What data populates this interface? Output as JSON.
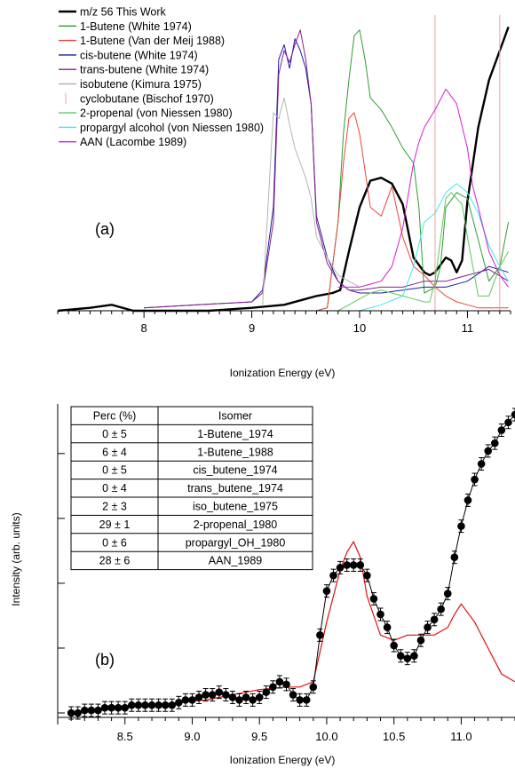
{
  "chart_data": [
    {
      "type": "line",
      "panel_label": "(a)",
      "xlabel": "Ionization Energy (eV)",
      "ylabel": "",
      "xlim": [
        7.2,
        11.4
      ],
      "xticks": [
        "8",
        "9",
        "10",
        "11"
      ],
      "grid": false,
      "legend_position": "top-left",
      "series": [
        {
          "name": "m/z 56 This Work",
          "color": "#000000",
          "x": [
            7.2,
            7.5,
            7.7,
            7.9,
            8.2,
            8.6,
            9.0,
            9.3,
            9.5,
            9.6,
            9.75,
            9.82,
            9.9,
            10.0,
            10.1,
            10.2,
            10.3,
            10.4,
            10.5,
            10.6,
            10.65,
            10.7,
            10.8,
            10.85,
            10.9,
            10.95,
            11.0,
            11.1,
            11.2,
            11.3,
            11.38
          ],
          "y": [
            0.0,
            0.01,
            0.02,
            0.0,
            0.0,
            0.0,
            0.01,
            0.02,
            0.04,
            0.05,
            0.06,
            0.07,
            0.2,
            0.35,
            0.44,
            0.45,
            0.43,
            0.36,
            0.18,
            0.13,
            0.12,
            0.13,
            0.18,
            0.17,
            0.13,
            0.17,
            0.37,
            0.62,
            0.78,
            0.88,
            0.96
          ]
        },
        {
          "name": "1-Butene (White 1974)",
          "color": "#2e9e2e",
          "x": [
            9.6,
            9.7,
            9.8,
            9.85,
            9.9,
            9.95,
            10.0,
            10.05,
            10.1,
            10.2,
            10.3,
            10.4,
            10.5,
            10.55,
            10.6,
            10.7,
            10.75,
            10.8,
            10.9,
            11.0,
            11.2,
            11.3,
            11.38
          ],
          "y": [
            0.0,
            0.01,
            0.3,
            0.6,
            0.78,
            0.93,
            0.95,
            0.85,
            0.72,
            0.68,
            0.62,
            0.55,
            0.5,
            0.35,
            0.06,
            0.08,
            0.15,
            0.35,
            0.4,
            0.38,
            0.1,
            0.15,
            0.3
          ]
        },
        {
          "name": "1-Butene (Van der Meij 1988)",
          "color": "#e8463a",
          "x": [
            9.6,
            9.7,
            9.8,
            9.85,
            9.9,
            9.95,
            10.0,
            10.1,
            10.2,
            10.3,
            10.4,
            10.5,
            10.6,
            10.7,
            10.8,
            10.9,
            11.0,
            11.1,
            11.2,
            11.3,
            11.38
          ],
          "y": [
            0.0,
            0.01,
            0.3,
            0.5,
            0.65,
            0.67,
            0.6,
            0.35,
            0.32,
            0.42,
            0.25,
            0.15,
            0.12,
            0.08,
            0.05,
            0.03,
            0.02,
            0.01,
            0.01,
            0.01,
            0.01
          ]
        },
        {
          "name": "cis-butene (White 1974)",
          "color": "#1c1ca8",
          "x": [
            8.0,
            8.5,
            9.0,
            9.1,
            9.2,
            9.25,
            9.3,
            9.35,
            9.4,
            9.45,
            9.5,
            9.55,
            9.6,
            9.7,
            9.8,
            9.9,
            10.0,
            10.2,
            10.4,
            10.6,
            10.8,
            11.0,
            11.2,
            11.38
          ],
          "y": [
            0.01,
            0.02,
            0.03,
            0.07,
            0.35,
            0.85,
            0.9,
            0.82,
            0.92,
            0.88,
            0.82,
            0.7,
            0.32,
            0.18,
            0.1,
            0.07,
            0.06,
            0.06,
            0.07,
            0.08,
            0.08,
            0.1,
            0.15,
            0.13
          ]
        },
        {
          "name": "trans-butene (White 1974)",
          "color": "#8a1f8a",
          "x": [
            8.0,
            8.5,
            9.0,
            9.1,
            9.2,
            9.25,
            9.3,
            9.35,
            9.4,
            9.45,
            9.5,
            9.55,
            9.6,
            9.7,
            9.8,
            9.9,
            10.0,
            10.2,
            10.4,
            10.6,
            10.8,
            11.0,
            11.2,
            11.38
          ],
          "y": [
            0.01,
            0.02,
            0.03,
            0.06,
            0.3,
            0.8,
            0.88,
            0.84,
            0.9,
            0.95,
            0.85,
            0.7,
            0.3,
            0.16,
            0.1,
            0.07,
            0.07,
            0.08,
            0.08,
            0.1,
            0.1,
            0.12,
            0.14,
            0.1
          ]
        },
        {
          "name": "isobutene (Kimura 1975)",
          "color": "#b4b4b4",
          "x": [
            9.1,
            9.15,
            9.2,
            9.25,
            9.3,
            9.35,
            9.4,
            9.45,
            9.5,
            9.55,
            9.6,
            9.7,
            9.8,
            9.9,
            10.0
          ],
          "y": [
            0.02,
            0.35,
            0.67,
            0.65,
            0.72,
            0.63,
            0.55,
            0.5,
            0.45,
            0.38,
            0.25,
            0.18,
            0.12,
            0.1,
            0.08
          ]
        },
        {
          "name": "cyclobutane (Bischof 1970)",
          "color": "#f2a0a0",
          "x": [
            10.7,
            11.3
          ],
          "y": [
            1.0,
            1.0
          ]
        },
        {
          "name": "2-propenal (von Niessen 1980)",
          "color": "#5cc85c",
          "x": [
            9.8,
            9.9,
            10.0,
            10.1,
            10.2,
            10.3,
            10.4,
            10.5,
            10.6,
            10.65,
            10.7,
            10.8,
            10.85,
            10.9,
            10.95,
            11.0,
            11.1,
            11.2,
            11.3,
            11.38
          ],
          "y": [
            0.0,
            0.02,
            0.04,
            0.06,
            0.07,
            0.06,
            0.05,
            0.04,
            0.03,
            0.03,
            0.1,
            0.38,
            0.4,
            0.38,
            0.36,
            0.25,
            0.05,
            0.05,
            0.15,
            0.2
          ]
        },
        {
          "name": "propargyl alcohol (von Niessen 1980)",
          "color": "#3ee6f0",
          "x": [
            10.0,
            10.2,
            10.4,
            10.5,
            10.6,
            10.7,
            10.8,
            10.9,
            11.0,
            11.1,
            11.2,
            11.3,
            11.38
          ],
          "y": [
            0.0,
            0.02,
            0.05,
            0.15,
            0.3,
            0.33,
            0.4,
            0.43,
            0.4,
            0.33,
            0.22,
            0.15,
            0.1
          ]
        },
        {
          "name": "AAN (Lacombe 1989)",
          "color": "#d21ed2",
          "x": [
            9.8,
            10.0,
            10.1,
            10.2,
            10.3,
            10.4,
            10.5,
            10.55,
            10.6,
            10.65,
            10.7,
            10.8,
            10.9,
            11.0,
            11.05,
            11.1,
            11.2,
            11.3,
            11.38
          ],
          "y": [
            0.08,
            0.08,
            0.09,
            0.1,
            0.15,
            0.28,
            0.5,
            0.57,
            0.62,
            0.65,
            0.68,
            0.75,
            0.7,
            0.55,
            0.42,
            0.35,
            0.2,
            0.12,
            0.08
          ]
        }
      ]
    },
    {
      "type": "line",
      "panel_label": "(b)",
      "xlabel": "Ionization Energy (eV)",
      "ylabel": "Intensity (arb. units)",
      "xlim": [
        8.0,
        11.4
      ],
      "xticks": [
        "8.5",
        "9.0",
        "9.5",
        "10.0",
        "10.5",
        "11.0"
      ],
      "grid": false,
      "series": [
        {
          "name": "",
          "color": "#000000",
          "markers": "filled-circle-with-error-bars",
          "x": [
            8.1,
            8.15,
            8.2,
            8.25,
            8.3,
            8.35,
            8.4,
            8.45,
            8.5,
            8.55,
            8.6,
            8.65,
            8.7,
            8.75,
            8.8,
            8.85,
            8.9,
            8.95,
            9.0,
            9.05,
            9.1,
            9.15,
            9.2,
            9.25,
            9.3,
            9.35,
            9.4,
            9.45,
            9.5,
            9.55,
            9.6,
            9.65,
            9.7,
            9.75,
            9.8,
            9.85,
            9.9,
            9.95,
            10.0,
            10.05,
            10.1,
            10.15,
            10.2,
            10.25,
            10.3,
            10.35,
            10.4,
            10.45,
            10.5,
            10.55,
            10.6,
            10.65,
            10.7,
            10.75,
            10.8,
            10.85,
            10.9,
            10.95,
            11.0,
            11.05,
            11.1,
            11.15,
            11.2,
            11.25,
            11.3,
            11.35,
            11.4
          ],
          "y": [
            0.0,
            0.0,
            0.01,
            0.01,
            0.01,
            0.02,
            0.02,
            0.02,
            0.02,
            0.03,
            0.03,
            0.03,
            0.03,
            0.03,
            0.03,
            0.03,
            0.04,
            0.05,
            0.05,
            0.06,
            0.07,
            0.07,
            0.08,
            0.07,
            0.06,
            0.05,
            0.06,
            0.05,
            0.06,
            0.08,
            0.1,
            0.12,
            0.11,
            0.07,
            0.05,
            0.05,
            0.1,
            0.3,
            0.47,
            0.53,
            0.56,
            0.57,
            0.57,
            0.57,
            0.53,
            0.44,
            0.38,
            0.33,
            0.26,
            0.22,
            0.21,
            0.22,
            0.28,
            0.33,
            0.36,
            0.4,
            0.46,
            0.6,
            0.72,
            0.82,
            0.9,
            0.96,
            1.01,
            1.04,
            1.09,
            1.12,
            1.15
          ]
        },
        {
          "name": "",
          "color": "#e01010",
          "markers": "none",
          "x": [
            8.1,
            8.3,
            8.5,
            8.7,
            8.9,
            9.1,
            9.3,
            9.5,
            9.7,
            9.8,
            9.9,
            10.0,
            10.05,
            10.1,
            10.15,
            10.2,
            10.25,
            10.3,
            10.4,
            10.5,
            10.6,
            10.7,
            10.8,
            10.9,
            10.95,
            11.0,
            11.1,
            11.2,
            11.3,
            11.4
          ],
          "y": [
            0.0,
            0.01,
            0.02,
            0.03,
            0.04,
            0.05,
            0.07,
            0.09,
            0.1,
            0.1,
            0.12,
            0.35,
            0.45,
            0.55,
            0.62,
            0.66,
            0.6,
            0.45,
            0.3,
            0.28,
            0.3,
            0.3,
            0.3,
            0.33,
            0.38,
            0.42,
            0.35,
            0.25,
            0.15,
            0.12
          ]
        }
      ],
      "table": {
        "headers": [
          "Perc (%)",
          "Isomer"
        ],
        "rows": [
          [
            "0 ± 5",
            "1-Butene_1974"
          ],
          [
            "6 ± 4",
            "1-Butene_1988"
          ],
          [
            "0 ± 5",
            "cis_butene_1974"
          ],
          [
            "0 ± 4",
            "trans_butene_1974"
          ],
          [
            "2 ± 3",
            "iso_butene_1975"
          ],
          [
            "29 ± 1",
            "2-propenal_1980"
          ],
          [
            "0 ± 6",
            "propargyl_OH_1980"
          ],
          [
            "28 ± 6",
            "AAN_1989"
          ]
        ]
      }
    }
  ]
}
